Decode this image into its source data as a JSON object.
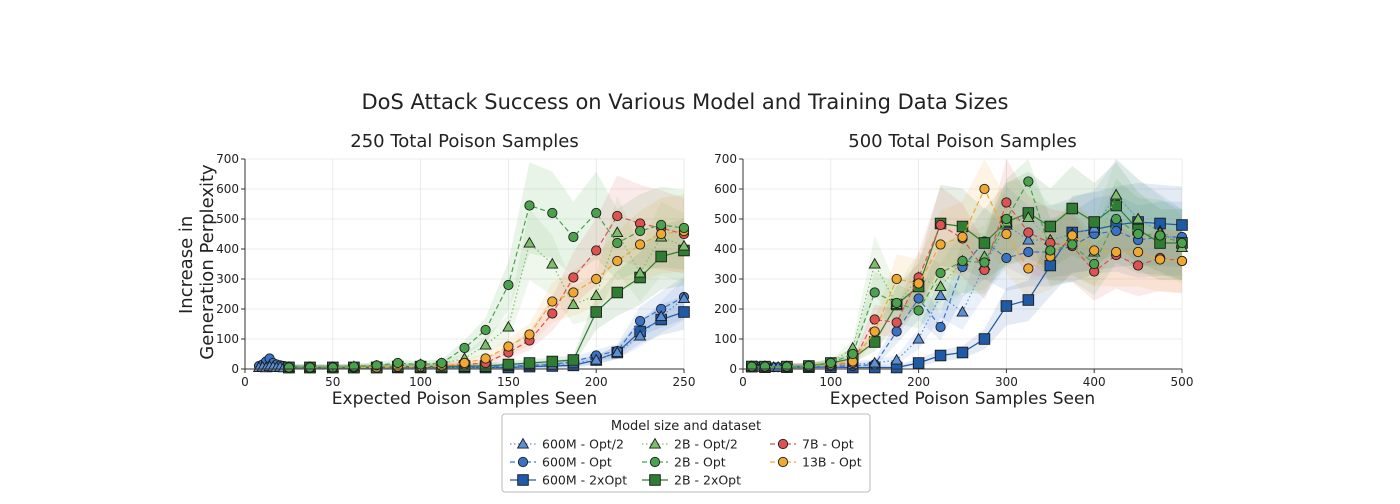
{
  "figure_title": "DoS Attack Success on Various Model and Training Data Sizes",
  "ylabel_line1": "Increase in",
  "ylabel_line2": "Generation Perplexity",
  "legend": {
    "title": "Model size and dataset",
    "entries": [
      {
        "label": "600M - Opt/2",
        "color": "#5b8fd6",
        "marker": "triangle",
        "linestyle": "dotted"
      },
      {
        "label": "600M - Opt",
        "color": "#3a73c6",
        "marker": "circle",
        "linestyle": "dashed"
      },
      {
        "label": "600M - 2xOpt",
        "color": "#1f5aa6",
        "marker": "square",
        "linestyle": "solid"
      },
      {
        "label": "2B - Opt/2",
        "color": "#7cbf6a",
        "marker": "triangle",
        "linestyle": "dotted"
      },
      {
        "label": "2B - Opt",
        "color": "#4aa24c",
        "marker": "circle",
        "linestyle": "dashed"
      },
      {
        "label": "2B - 2xOpt",
        "color": "#2e7d32",
        "marker": "square",
        "linestyle": "solid"
      },
      {
        "label": "7B - Opt",
        "color": "#e05252",
        "marker": "circle",
        "linestyle": "dashed"
      },
      {
        "label": "13B - Opt",
        "color": "#f0a830",
        "marker": "circle",
        "linestyle": "dashed"
      }
    ]
  },
  "chart_data": [
    {
      "type": "line",
      "title": "250 Total Poison Samples",
      "xlabel": "Expected Poison Samples Seen",
      "ylabel": "Increase in Generation Perplexity",
      "xlim": [
        0,
        250
      ],
      "ylim": [
        0,
        700
      ],
      "xticks": [
        0,
        50,
        100,
        150,
        200,
        250
      ],
      "yticks": [
        0,
        100,
        200,
        300,
        400,
        500,
        600,
        700
      ],
      "grid": true,
      "series": [
        {
          "name": "600M - Opt/2",
          "x": [
            8,
            10,
            12,
            14,
            16,
            18,
            20,
            22,
            25,
            37,
            50,
            62,
            75,
            87,
            100,
            112,
            125,
            137,
            150,
            162,
            175,
            187,
            200,
            212,
            225,
            237,
            250
          ],
          "y": [
            5,
            6,
            4,
            8,
            7,
            5,
            6,
            4,
            5,
            5,
            5,
            5,
            5,
            5,
            5,
            5,
            5,
            5,
            8,
            10,
            12,
            20,
            30,
            55,
            110,
            175,
            235
          ]
        },
        {
          "name": "600M - Opt",
          "x": [
            8,
            10,
            12,
            14,
            16,
            18,
            20,
            22,
            25,
            37,
            50,
            62,
            75,
            87,
            100,
            112,
            125,
            137,
            150,
            162,
            175,
            187,
            200,
            212,
            225,
            237,
            250
          ],
          "y": [
            10,
            15,
            25,
            35,
            20,
            15,
            12,
            10,
            8,
            6,
            5,
            5,
            6,
            6,
            5,
            6,
            6,
            8,
            10,
            12,
            15,
            25,
            45,
            60,
            160,
            200,
            240
          ]
        },
        {
          "name": "600M - 2xOpt",
          "x": [
            25,
            37,
            50,
            62,
            75,
            87,
            100,
            112,
            125,
            137,
            150,
            162,
            175,
            187,
            200,
            212,
            225,
            237,
            250
          ],
          "y": [
            5,
            5,
            5,
            5,
            5,
            5,
            5,
            5,
            5,
            5,
            5,
            8,
            10,
            12,
            30,
            55,
            125,
            165,
            190
          ]
        },
        {
          "name": "2B - Opt/2",
          "x": [
            25,
            37,
            50,
            62,
            75,
            87,
            100,
            112,
            125,
            137,
            150,
            162,
            175,
            187,
            200,
            212,
            225,
            237,
            250
          ],
          "y": [
            5,
            5,
            5,
            8,
            10,
            12,
            15,
            18,
            35,
            80,
            140,
            420,
            350,
            215,
            245,
            455,
            320,
            440,
            410
          ]
        },
        {
          "name": "2B - Opt",
          "x": [
            25,
            37,
            50,
            62,
            75,
            87,
            100,
            112,
            125,
            137,
            150,
            162,
            175,
            187,
            200,
            212,
            225,
            237,
            250
          ],
          "y": [
            5,
            5,
            5,
            8,
            12,
            20,
            15,
            20,
            70,
            130,
            280,
            545,
            520,
            440,
            520,
            420,
            460,
            480,
            470
          ]
        },
        {
          "name": "2B - 2xOpt",
          "x": [
            25,
            37,
            50,
            62,
            75,
            87,
            100,
            112,
            125,
            137,
            150,
            162,
            175,
            187,
            200,
            212,
            225,
            237,
            250
          ],
          "y": [
            5,
            5,
            5,
            5,
            5,
            8,
            8,
            8,
            10,
            10,
            15,
            20,
            25,
            30,
            190,
            255,
            305,
            375,
            395
          ]
        },
        {
          "name": "7B - Opt",
          "x": [
            25,
            37,
            50,
            62,
            75,
            87,
            100,
            112,
            125,
            137,
            150,
            162,
            175,
            187,
            200,
            212,
            225,
            237,
            250
          ],
          "y": [
            5,
            5,
            5,
            5,
            5,
            8,
            8,
            10,
            15,
            20,
            55,
            95,
            185,
            305,
            395,
            510,
            485,
            470,
            450
          ]
        },
        {
          "name": "13B - Opt",
          "x": [
            25,
            37,
            50,
            62,
            75,
            87,
            100,
            112,
            125,
            137,
            150,
            162,
            175,
            187,
            200,
            212,
            225,
            237,
            250
          ],
          "y": [
            5,
            5,
            5,
            5,
            5,
            8,
            8,
            10,
            20,
            35,
            75,
            115,
            225,
            255,
            300,
            360,
            415,
            450,
            460
          ]
        }
      ]
    },
    {
      "type": "line",
      "title": "500 Total Poison Samples",
      "xlabel": "Expected Poison Samples Seen",
      "ylabel": "",
      "xlim": [
        0,
        500
      ],
      "ylim": [
        0,
        700
      ],
      "xticks": [
        0,
        100,
        200,
        300,
        400,
        500
      ],
      "yticks": [
        0,
        100,
        200,
        300,
        400,
        500,
        600,
        700
      ],
      "grid": true,
      "series": [
        {
          "name": "600M - Opt/2",
          "x": [
            10,
            15,
            20,
            25,
            30,
            35,
            40,
            50,
            75,
            100,
            125,
            150,
            175,
            200,
            225,
            250,
            275,
            300,
            325,
            350,
            375,
            400,
            425,
            450,
            475,
            500
          ],
          "y": [
            8,
            8,
            6,
            8,
            6,
            6,
            6,
            6,
            8,
            10,
            15,
            20,
            30,
            100,
            245,
            190,
            345,
            480,
            430,
            430,
            450,
            470,
            580,
            500,
            460,
            420
          ]
        },
        {
          "name": "600M - Opt",
          "x": [
            10,
            15,
            20,
            25,
            30,
            35,
            40,
            50,
            75,
            100,
            125,
            150,
            175,
            200,
            225,
            250,
            275,
            300,
            325,
            350,
            375,
            400,
            425,
            450,
            475,
            500
          ],
          "y": [
            8,
            10,
            8,
            8,
            6,
            6,
            6,
            6,
            8,
            10,
            10,
            15,
            125,
            235,
            140,
            340,
            425,
            370,
            390,
            390,
            410,
            450,
            460,
            430,
            440,
            440
          ]
        },
        {
          "name": "600M - 2xOpt",
          "x": [
            10,
            25,
            50,
            75,
            100,
            125,
            150,
            175,
            200,
            225,
            250,
            275,
            300,
            325,
            350,
            375,
            400,
            425,
            450,
            475,
            500
          ],
          "y": [
            8,
            6,
            6,
            6,
            6,
            5,
            5,
            5,
            20,
            45,
            55,
            100,
            210,
            230,
            345,
            455,
            465,
            480,
            490,
            485,
            480
          ]
        },
        {
          "name": "2B - Opt/2",
          "x": [
            10,
            25,
            50,
            75,
            100,
            125,
            150,
            175,
            200,
            225,
            250,
            275,
            300,
            325,
            350,
            375,
            400,
            425,
            450,
            475,
            500
          ],
          "y": [
            8,
            8,
            8,
            10,
            20,
            70,
            350,
            215,
            305,
            275,
            360,
            375,
            490,
            505,
            430,
            440,
            390,
            580,
            500,
            455,
            405
          ]
        },
        {
          "name": "2B - Opt",
          "x": [
            10,
            25,
            50,
            75,
            100,
            125,
            150,
            175,
            200,
            225,
            250,
            275,
            300,
            325,
            350,
            375,
            400,
            425,
            450,
            475,
            500
          ],
          "y": [
            8,
            8,
            8,
            10,
            20,
            50,
            255,
            220,
            195,
            320,
            360,
            355,
            500,
            625,
            395,
            415,
            350,
            500,
            450,
            445,
            420
          ]
        },
        {
          "name": "2B - 2xOpt",
          "x": [
            10,
            25,
            50,
            75,
            100,
            125,
            150,
            175,
            200,
            225,
            250,
            275,
            300,
            325,
            350,
            375,
            400,
            425,
            450,
            475,
            500
          ],
          "y": [
            8,
            8,
            8,
            10,
            20,
            35,
            90,
            215,
            275,
            485,
            475,
            420,
            490,
            520,
            475,
            535,
            490,
            545,
            465,
            420,
            420
          ]
        },
        {
          "name": "7B - Opt",
          "x": [
            10,
            25,
            50,
            75,
            100,
            125,
            150,
            175,
            200,
            225,
            250,
            275,
            300,
            325,
            350,
            375,
            400,
            425,
            450,
            475,
            500
          ],
          "y": [
            8,
            8,
            8,
            10,
            15,
            20,
            165,
            155,
            305,
            480,
            435,
            330,
            555,
            455,
            420,
            410,
            325,
            380,
            345,
            370,
            360
          ]
        },
        {
          "name": "13B - Opt",
          "x": [
            10,
            25,
            50,
            75,
            100,
            125,
            150,
            175,
            200,
            225,
            250,
            275,
            300,
            325,
            350,
            375,
            400,
            425,
            450,
            475,
            500
          ],
          "y": [
            8,
            8,
            8,
            10,
            15,
            25,
            125,
            300,
            285,
            415,
            440,
            600,
            450,
            335,
            375,
            445,
            395,
            390,
            390,
            365,
            360
          ]
        }
      ]
    }
  ]
}
